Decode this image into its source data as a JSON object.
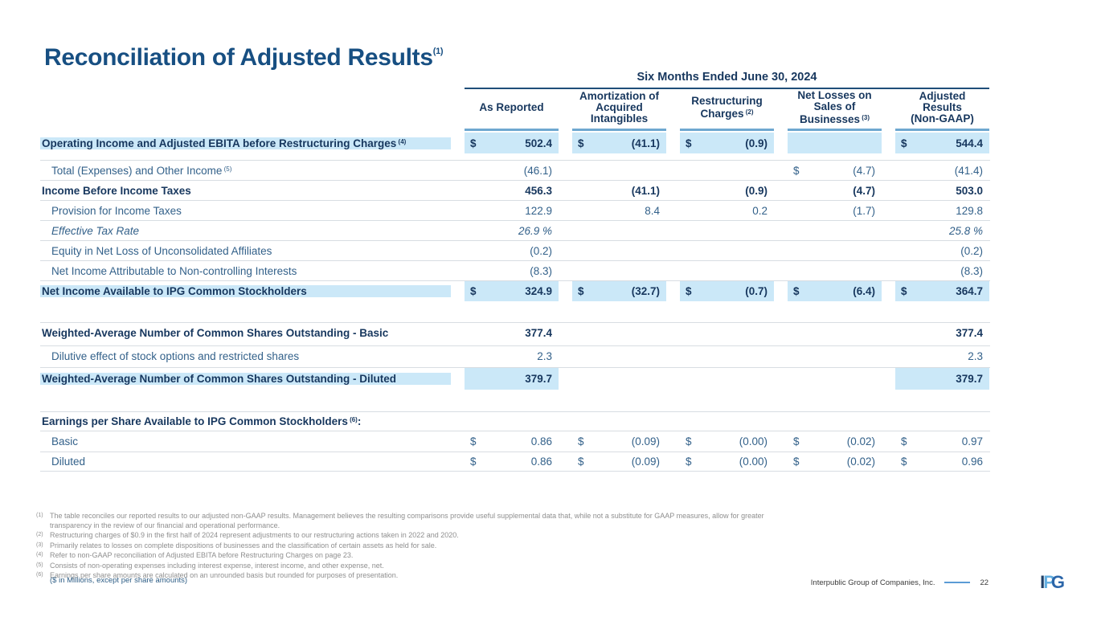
{
  "slide": {
    "title": "Reconciliation of Adjusted Results",
    "title_sup": "(1)",
    "units_note": "($ in Millions, except per share amounts)"
  },
  "colors": {
    "title_blue": "#174F82",
    "navy_text": "#17375E",
    "regular_text": "#33618A",
    "highlight_blue": "#CBE8F8",
    "column_underline_blue": "#6FA8D0",
    "header_rule_navy": "#1F4E79",
    "footnote_gray": "#8F8F8F"
  },
  "table": {
    "period_header": "Six Months Ended June 30, 2024",
    "columns": [
      {
        "name": "as-reported",
        "lines": [
          "As Reported"
        ],
        "sup": ""
      },
      {
        "name": "amortization-acquired-intangibles",
        "lines": [
          "Amortization of",
          "Acquired",
          "Intangibles"
        ],
        "sup": ""
      },
      {
        "name": "restructuring-charges",
        "lines": [
          "Restructuring",
          "Charges"
        ],
        "sup": "(2)"
      },
      {
        "name": "net-losses-sales-businesses",
        "lines": [
          "Net Losses on",
          "Sales of",
          "Businesses"
        ],
        "sup": "(3)"
      },
      {
        "name": "adjusted-results-non-gaap",
        "lines": [
          "Adjusted",
          "Results",
          "(Non-GAAP)"
        ],
        "sup": ""
      }
    ],
    "sections": [
      {
        "id": "sec-main",
        "rows": [
          {
            "name": "operating-income-adjusted-ebita",
            "label": "Operating Income and Adjusted EBITA before Restructuring Charges",
            "sup": "(4)",
            "bold": true,
            "hl": "row",
            "cells": [
              {
                "d": "$",
                "v": "502.4"
              },
              {
                "d": "$",
                "v": "(41.1)"
              },
              {
                "d": "$",
                "v": "(0.9)"
              },
              {
                "blank": true
              },
              {
                "d": "$",
                "v": "544.4"
              }
            ]
          },
          {
            "name": "total-expenses-other-income",
            "label": "Total (Expenses) and Other Income",
            "sup": "(5)",
            "indent": true,
            "bt": true,
            "cells": [
              {
                "v": "(46.1)"
              },
              null,
              null,
              {
                "d": "$",
                "v": "(4.7)"
              },
              {
                "v": "(41.4)"
              }
            ]
          },
          {
            "name": "income-before-income-taxes",
            "label": "Income Before Income Taxes",
            "bold": true,
            "bt": true,
            "cells": [
              {
                "v": "456.3"
              },
              {
                "v": "(41.1)"
              },
              {
                "v": "(0.9)"
              },
              {
                "v": "(4.7)"
              },
              {
                "v": "503.0"
              }
            ]
          },
          {
            "name": "provision-for-income-taxes",
            "label": "Provision for Income Taxes",
            "indent": true,
            "bt": true,
            "cells": [
              {
                "v": "122.9"
              },
              {
                "v": "8.4"
              },
              {
                "v": "0.2"
              },
              {
                "v": "(1.7)"
              },
              {
                "v": "129.8"
              }
            ]
          },
          {
            "name": "effective-tax-rate",
            "label": "Effective Tax Rate",
            "italic": true,
            "indent": true,
            "bt": true,
            "cells": [
              {
                "v": "26.9 %"
              },
              null,
              null,
              null,
              {
                "v": "25.8 %"
              }
            ]
          },
          {
            "name": "equity-net-loss-unconsolidated-affiliates",
            "label": "Equity in Net Loss of Unconsolidated Affiliates",
            "indent": true,
            "bt": true,
            "cells": [
              {
                "v": "(0.2)"
              },
              null,
              null,
              null,
              {
                "v": "(0.2)"
              }
            ]
          },
          {
            "name": "net-income-noncontrolling-interests",
            "label": "Net Income Attributable to Non-controlling Interests",
            "indent": true,
            "bt": true,
            "cells": [
              {
                "v": "(8.3)"
              },
              null,
              null,
              null,
              {
                "v": "(8.3)"
              }
            ]
          },
          {
            "name": "net-income-available-ipg-stockholders",
            "label": "Net Income Available to IPG Common Stockholders",
            "bold": true,
            "hl": "row",
            "bt": true,
            "cells": [
              {
                "d": "$",
                "v": "324.9"
              },
              {
                "d": "$",
                "v": "(32.7)"
              },
              {
                "d": "$",
                "v": "(0.7)"
              },
              {
                "d": "$",
                "v": "(6.4)"
              },
              {
                "d": "$",
                "v": "364.7"
              }
            ]
          }
        ]
      },
      {
        "id": "sec-shares",
        "rows": [
          {
            "name": "weighted-average-shares-basic",
            "label": "Weighted-Average Number of Common Shares Outstanding - Basic",
            "bold": true,
            "bt": true,
            "cells": [
              {
                "v": "377.4"
              },
              null,
              null,
              null,
              {
                "v": "377.4"
              }
            ]
          },
          {
            "name": "dilutive-effect-stock-options",
            "label": "Dilutive effect of stock options and restricted shares",
            "indent": true,
            "bt": true,
            "cells": [
              {
                "v": "2.3"
              },
              null,
              null,
              null,
              {
                "v": "2.3"
              }
            ]
          },
          {
            "name": "weighted-average-shares-diluted",
            "label": "Weighted-Average Number of Common Shares Outstanding - Diluted",
            "bold": true,
            "bt": true,
            "hl": "label",
            "cells": [
              {
                "v": "379.7",
                "hl": true
              },
              null,
              null,
              null,
              {
                "v": "379.7",
                "hl": true
              }
            ]
          }
        ]
      },
      {
        "id": "sec-eps",
        "rows": [
          {
            "name": "eps-header",
            "label": "Earnings per Share Available to IPG Common Stockholders",
            "sup": "(6)",
            "suffix": ":",
            "bold": true,
            "bt": true,
            "bb": true,
            "cells": [
              null,
              null,
              null,
              null,
              null
            ]
          },
          {
            "name": "eps-basic",
            "label": "Basic",
            "indent": true,
            "cells": [
              {
                "d": "$",
                "v": "0.86"
              },
              {
                "d": "$",
                "v": "(0.09)"
              },
              {
                "d": "$",
                "v": "(0.00)"
              },
              {
                "d": "$",
                "v": "(0.02)"
              },
              {
                "d": "$",
                "v": "0.97"
              }
            ]
          },
          {
            "name": "eps-diluted",
            "label": "Diluted",
            "indent": true,
            "bt": true,
            "bb": true,
            "cells": [
              {
                "d": "$",
                "v": "0.86"
              },
              {
                "d": "$",
                "v": "(0.09)"
              },
              {
                "d": "$",
                "v": "(0.00)"
              },
              {
                "d": "$",
                "v": "(0.02)"
              },
              {
                "d": "$",
                "v": "0.96"
              }
            ]
          }
        ]
      }
    ]
  },
  "footnotes": [
    {
      "sup": "(1)",
      "text": "The table reconciles our reported results to our adjusted non-GAAP results. Management believes the resulting comparisons provide useful supplemental data that, while not a substitute for GAAP measures, allow for greater transparency in the review of our financial and operational performance."
    },
    {
      "sup": "(2)",
      "text": "Restructuring charges of $0.9 in the first half of 2024 represent adjustments to our restructuring actions taken in 2022 and 2020."
    },
    {
      "sup": "(3)",
      "text": "Primarily relates to losses on complete dispositions of businesses and the classification of certain assets as held for sale."
    },
    {
      "sup": "(4)",
      "text": "Refer to non-GAAP reconciliation of Adjusted EBITA before Restructuring Charges on page 23."
    },
    {
      "sup": "(5)",
      "text": "Consists of non-operating expenses including interest expense, interest income, and other expense, net."
    },
    {
      "sup": "(6)",
      "text": "Earnings per share amounts are calculated on an unrounded basis but rounded for purposes of presentation."
    }
  ],
  "footer": {
    "company": "Interpublic Group of Companies, Inc.",
    "page": "22",
    "logo_letters": {
      "i": "I",
      "p": "P",
      "g": "G"
    }
  }
}
